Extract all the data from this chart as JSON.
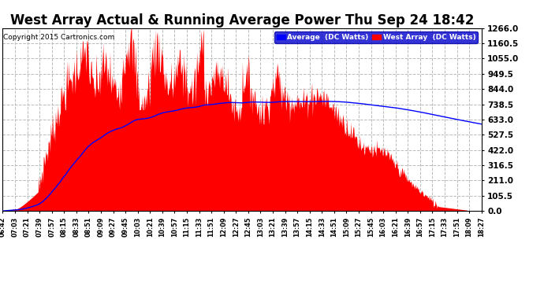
{
  "title": "West Array Actual & Running Average Power Thu Sep 24 18:42",
  "copyright": "Copyright 2015 Cartronics.com",
  "legend_avg": "Average  (DC Watts)",
  "legend_west": "West Array  (DC Watts)",
  "ymin": 0.0,
  "ymax": 1266.0,
  "yticks": [
    0.0,
    105.5,
    211.0,
    316.5,
    422.0,
    527.5,
    633.0,
    738.5,
    844.0,
    949.5,
    1055.0,
    1160.5,
    1266.0
  ],
  "background_color": "#ffffff",
  "plot_bg_color": "#ffffff",
  "grid_color": "#bbbbbb",
  "west_color": "#ff0000",
  "avg_color": "#0000ff",
  "title_fontsize": 12,
  "xtick_labels": [
    "06:42",
    "07:03",
    "07:21",
    "07:39",
    "07:57",
    "08:15",
    "08:33",
    "08:51",
    "09:09",
    "09:27",
    "09:45",
    "10:03",
    "10:21",
    "10:39",
    "10:57",
    "11:15",
    "11:33",
    "11:51",
    "12:09",
    "12:27",
    "12:45",
    "13:03",
    "13:21",
    "13:39",
    "13:57",
    "14:15",
    "14:33",
    "14:51",
    "15:09",
    "15:27",
    "15:45",
    "16:03",
    "16:21",
    "16:39",
    "16:57",
    "17:15",
    "17:33",
    "17:51",
    "18:09",
    "18:27"
  ]
}
